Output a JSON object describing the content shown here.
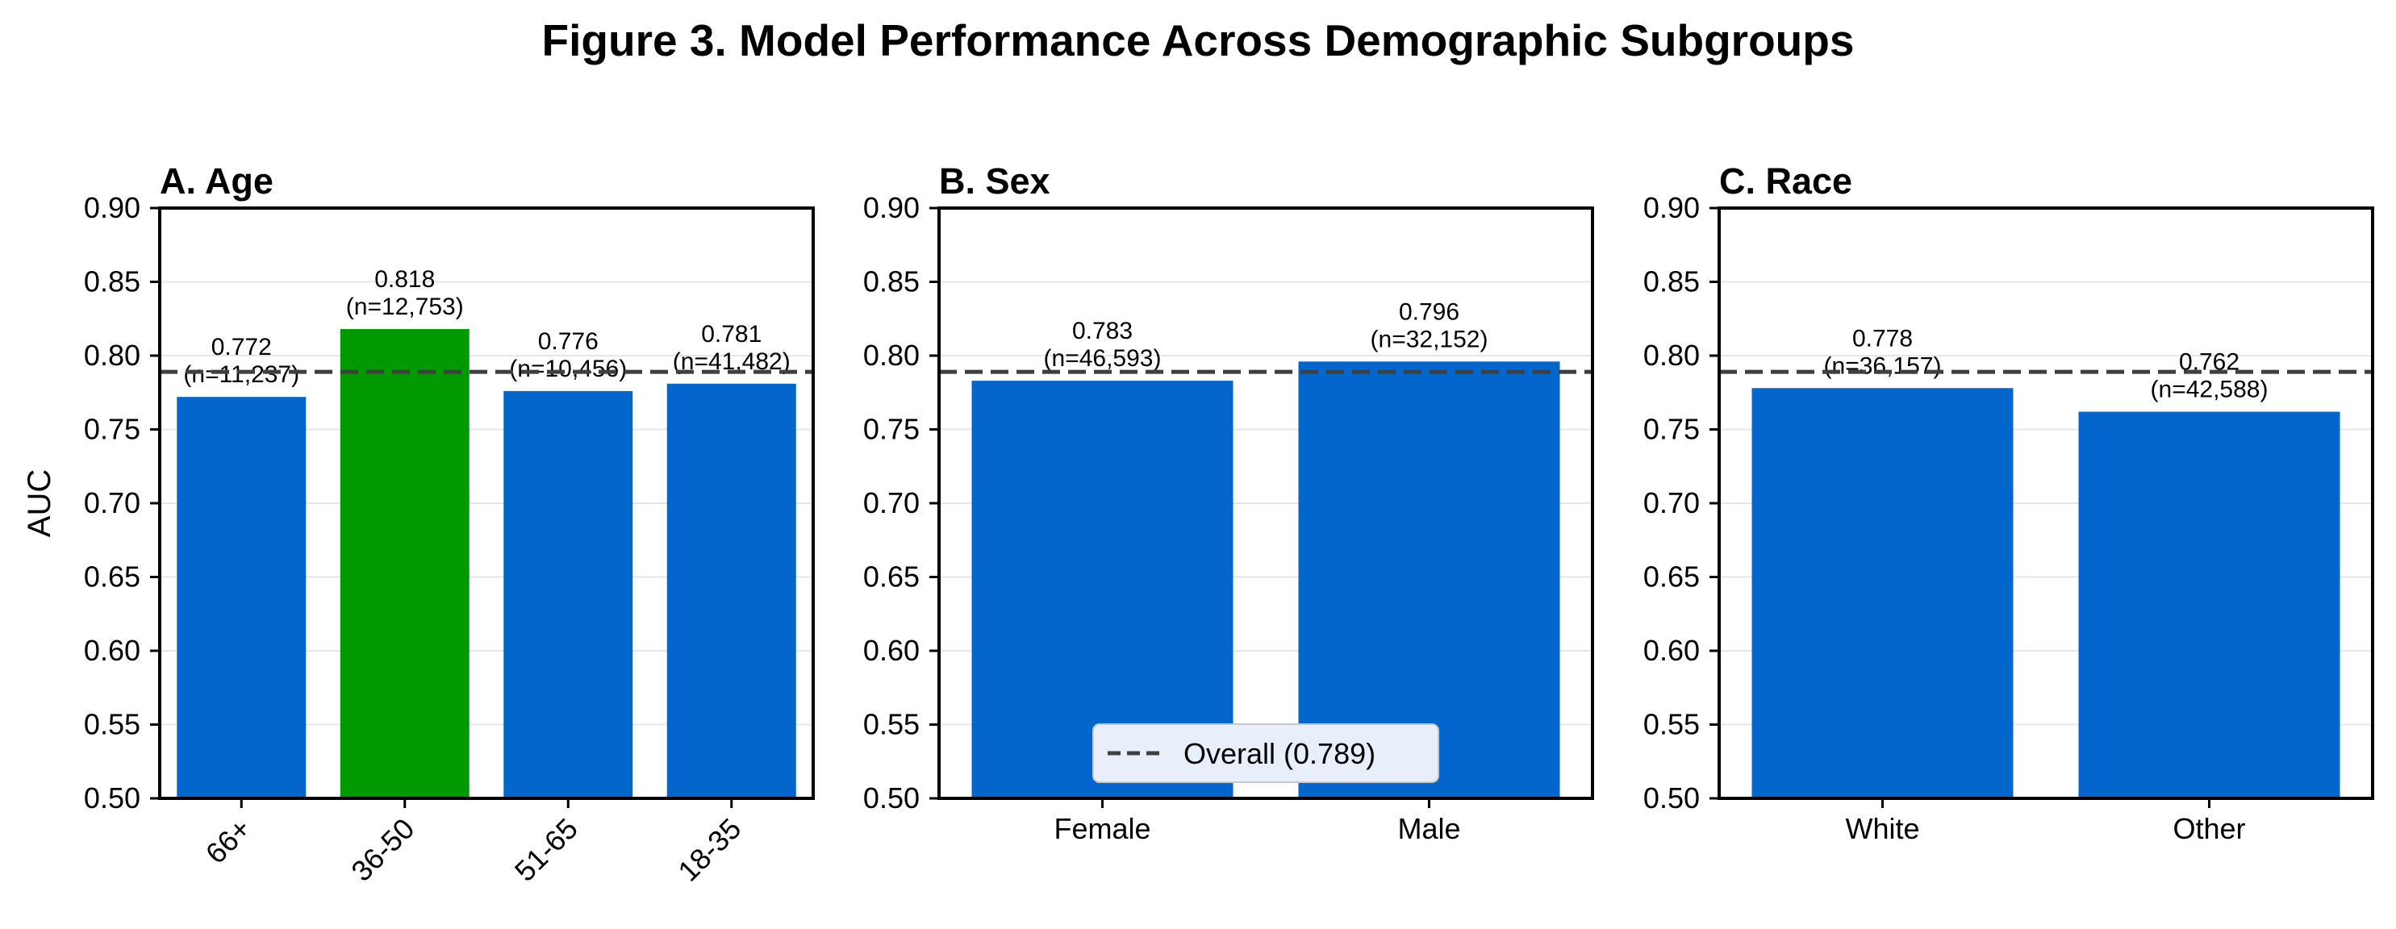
{
  "figure": {
    "title": "Figure 3. Model Performance Across Demographic Subgroups",
    "ylabel": "AUC"
  },
  "colors": {
    "bar": "#0366cc",
    "highlight": "#009900",
    "overall_line": "#3f3f3f",
    "axis": "#000000",
    "grid": "#e6e6e6",
    "legend_bg": "#e7f0fa"
  },
  "legend": {
    "label": "Overall (0.789)",
    "placement": "lower center of panel B"
  },
  "chart_data": [
    {
      "type": "bar",
      "title": "A. Age",
      "ylabel": "AUC",
      "ylim": [
        0.5,
        0.9
      ],
      "yticks": [
        "0.50",
        "0.55",
        "0.60",
        "0.65",
        "0.70",
        "0.75",
        "0.80",
        "0.85",
        "0.90"
      ],
      "grid": "horizontal",
      "overall": 0.789,
      "categories": [
        "66+",
        "36-50",
        "51-65",
        "18-35"
      ],
      "values": [
        0.772,
        0.818,
        0.776,
        0.781
      ],
      "value_labels": [
        "0.772",
        "0.818",
        "0.776",
        "0.781"
      ],
      "n_labels": [
        "(n=11,237)",
        "(n=12,753)",
        "(n=10,456)",
        "(n=41,482)"
      ],
      "highlight_index": 1,
      "rotated_ticks": true
    },
    {
      "type": "bar",
      "title": "B. Sex",
      "ylim": [
        0.5,
        0.9
      ],
      "yticks": [
        "0.50",
        "0.55",
        "0.60",
        "0.65",
        "0.70",
        "0.75",
        "0.80",
        "0.85",
        "0.90"
      ],
      "grid": "horizontal",
      "overall": 0.789,
      "categories": [
        "Female",
        "Male"
      ],
      "values": [
        0.783,
        0.796
      ],
      "value_labels": [
        "0.783",
        "0.796"
      ],
      "n_labels": [
        "(n=46,593)",
        "(n=32,152)"
      ],
      "highlight_index": -1,
      "rotated_ticks": false,
      "legend": true
    },
    {
      "type": "bar",
      "title": "C. Race",
      "ylim": [
        0.5,
        0.9
      ],
      "yticks": [
        "0.50",
        "0.55",
        "0.60",
        "0.65",
        "0.70",
        "0.75",
        "0.80",
        "0.85",
        "0.90"
      ],
      "grid": "horizontal",
      "overall": 0.789,
      "categories": [
        "White",
        "Other"
      ],
      "values": [
        0.778,
        0.762
      ],
      "value_labels": [
        "0.778",
        "0.762"
      ],
      "n_labels": [
        "(n=36,157)",
        "(n=42,588)"
      ],
      "highlight_index": -1,
      "rotated_ticks": false
    }
  ]
}
